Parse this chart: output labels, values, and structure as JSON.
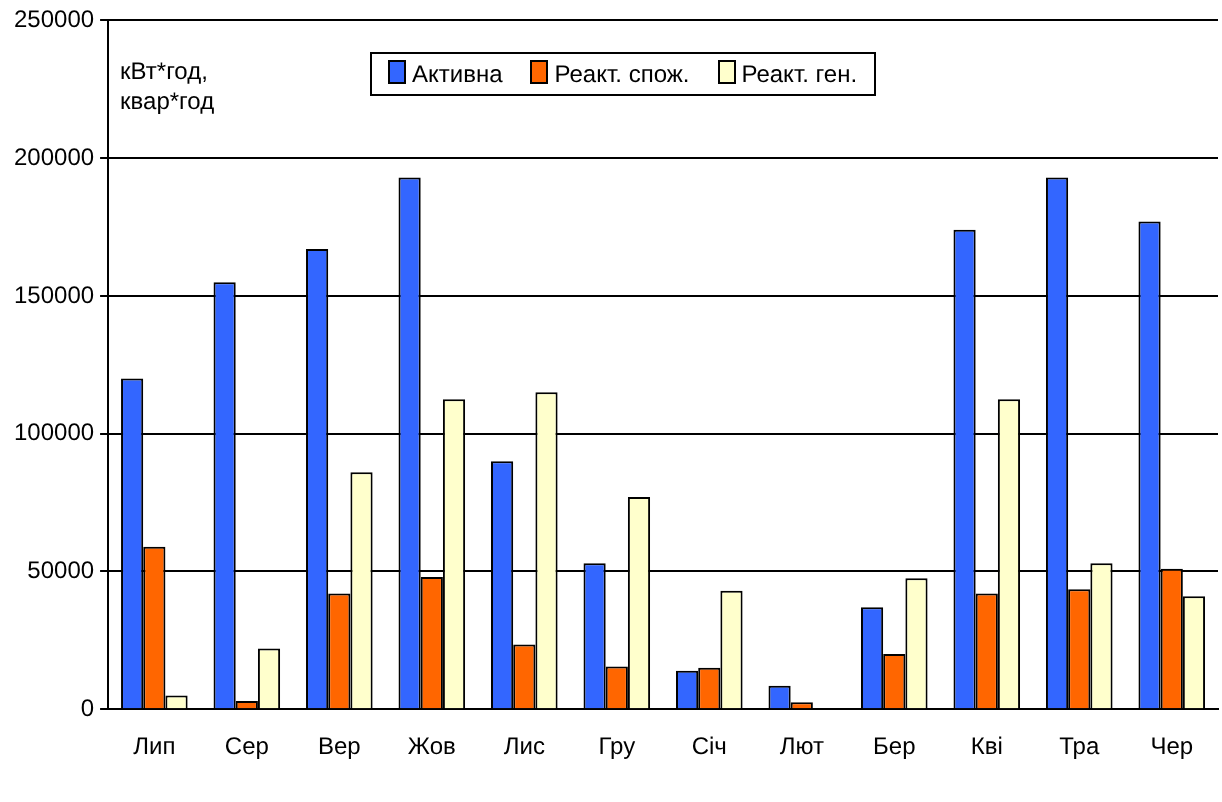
{
  "chart_data": {
    "type": "bar",
    "ylabel": "кВт*год, квар*год",
    "categories": [
      "Лип",
      "Сер",
      "Вер",
      "Жов",
      "Лис",
      "Гру",
      "Січ",
      "Лют",
      "Бер",
      "Кві",
      "Тра",
      "Чер"
    ],
    "series": [
      {
        "name": "Активна",
        "color": "#3366ff",
        "values": [
          120000,
          155000,
          167000,
          193000,
          90000,
          53000,
          14000,
          8500,
          37000,
          174000,
          193000,
          177000
        ]
      },
      {
        "name": "Реакт. спож.",
        "color": "#ff6600",
        "values": [
          59000,
          3000,
          42000,
          48000,
          23500,
          15500,
          15000,
          2500,
          20000,
          42000,
          43500,
          51000
        ]
      },
      {
        "name": "Реакт. ген.",
        "color": "#ffffcc",
        "values": [
          5000,
          22000,
          86000,
          112500,
          115000,
          77000,
          43000,
          0,
          47500,
          112500,
          53000,
          41000
        ]
      }
    ],
    "ylim": [
      0,
      250000
    ],
    "yticks": [
      0,
      50000,
      100000,
      150000,
      200000,
      250000
    ],
    "grid": "y",
    "legend": "top"
  }
}
